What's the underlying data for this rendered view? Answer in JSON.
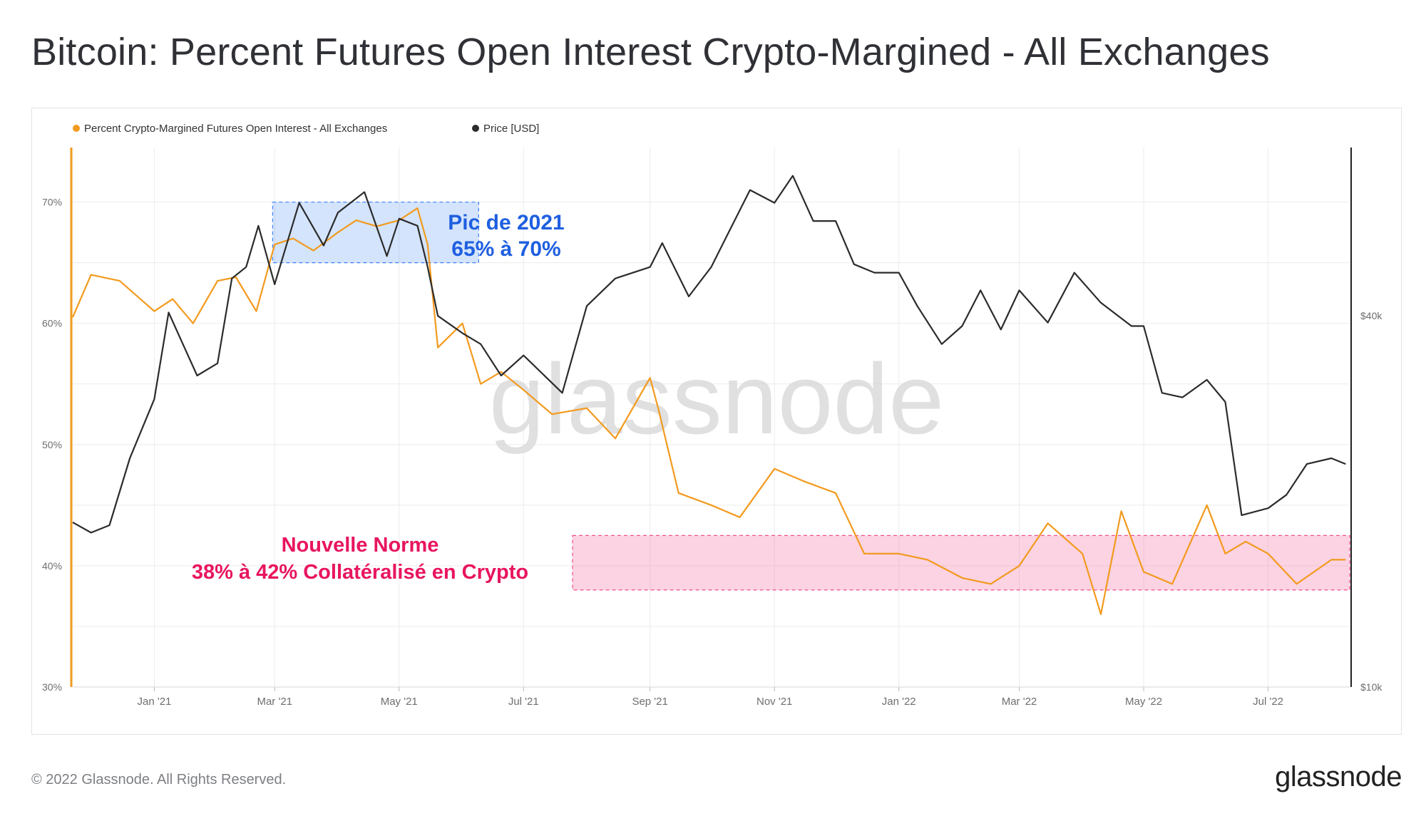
{
  "title": "Bitcoin: Percent Futures Open Interest Crypto-Margined - All Exchanges",
  "footer": {
    "copyright": "© 2022 Glassnode. All Rights Reserved.",
    "logo": "glassnode"
  },
  "watermark": "glassnode",
  "annotations": {
    "peak_label_line1": "Pic de 2021",
    "peak_label_line2": "65% à 70%",
    "norm_label_line1": "Nouvelle Norme",
    "norm_label_line2": "38% à 42% Collatéralisé en Crypto"
  },
  "colors": {
    "oi_line": "#f39a1e",
    "price_line": "#2b2b2b",
    "peak_box": "#3b82f6",
    "norm_box": "#f0508c",
    "peak_text": "#1f5fe0",
    "norm_text": "#e8155f",
    "grid": "#ececec",
    "axis_text": "#6e6e6e"
  },
  "chart_data": {
    "type": "line",
    "legend": [
      "Percent Crypto-Margined Futures Open Interest - All Exchanges",
      "Price [USD]"
    ],
    "legend_position": "top-left",
    "x_ticks": [
      "Jan '21",
      "Mar '21",
      "May '21",
      "Jul '21",
      "Sep '21",
      "Nov '21",
      "Jan '22",
      "Mar '22",
      "May '22",
      "Jul '22"
    ],
    "x_tick_dates": [
      "2021-01-01",
      "2021-03-01",
      "2021-05-01",
      "2021-07-01",
      "2021-09-01",
      "2021-11-01",
      "2022-01-01",
      "2022-03-01",
      "2022-05-01",
      "2022-07-01"
    ],
    "x_range": [
      "2020-11-22",
      "2022-08-10"
    ],
    "y_left": {
      "ticks": [
        "30%",
        "40%",
        "50%",
        "60%",
        "70%"
      ],
      "range": [
        30,
        74.5
      ]
    },
    "y_right": {
      "ticks": [
        "$10k",
        "$40k"
      ],
      "scale": "log",
      "range": [
        10000,
        75000
      ]
    },
    "grid": true,
    "series": [
      {
        "name": "Percent Crypto-Margined Futures Open Interest - All Exchanges",
        "axis": "left",
        "unit": "%",
        "x": [
          "2020-11-22",
          "2020-12-01",
          "2020-12-15",
          "2021-01-01",
          "2021-01-10",
          "2021-01-20",
          "2021-02-01",
          "2021-02-10",
          "2021-02-20",
          "2021-03-01",
          "2021-03-10",
          "2021-03-20",
          "2021-04-01",
          "2021-04-10",
          "2021-04-20",
          "2021-05-01",
          "2021-05-10",
          "2021-05-15",
          "2021-05-20",
          "2021-06-01",
          "2021-06-10",
          "2021-06-20",
          "2021-07-01",
          "2021-07-15",
          "2021-08-01",
          "2021-08-15",
          "2021-09-01",
          "2021-09-05",
          "2021-09-15",
          "2021-10-01",
          "2021-10-15",
          "2021-11-01",
          "2021-11-15",
          "2021-12-01",
          "2021-12-15",
          "2022-01-01",
          "2022-01-15",
          "2022-02-01",
          "2022-02-15",
          "2022-03-01",
          "2022-03-15",
          "2022-04-01",
          "2022-04-10",
          "2022-04-20",
          "2022-05-01",
          "2022-05-15",
          "2022-06-01",
          "2022-06-10",
          "2022-06-20",
          "2022-07-01",
          "2022-07-15",
          "2022-08-01",
          "2022-08-08"
        ],
        "y": [
          60.5,
          64,
          63.5,
          61,
          62,
          60,
          63.5,
          63.8,
          61,
          66.5,
          67,
          66,
          67.5,
          68.5,
          68,
          68.5,
          69.5,
          66.5,
          58,
          60,
          55,
          56,
          54.5,
          52.5,
          53,
          50.5,
          55.5,
          53,
          46,
          45,
          44,
          48,
          47,
          46,
          41,
          41,
          40.5,
          39,
          38.5,
          40,
          43.5,
          41,
          36,
          44.5,
          39.5,
          38.5,
          45,
          41,
          42,
          41,
          38.5,
          40.5,
          40.5
        ]
      },
      {
        "name": "Price [USD]",
        "axis": "right",
        "unit": "USD",
        "x": [
          "2020-11-22",
          "2020-12-01",
          "2020-12-10",
          "2020-12-20",
          "2021-01-01",
          "2021-01-08",
          "2021-01-15",
          "2021-01-22",
          "2021-02-01",
          "2021-02-08",
          "2021-02-15",
          "2021-02-21",
          "2021-03-01",
          "2021-03-13",
          "2021-03-25",
          "2021-04-01",
          "2021-04-14",
          "2021-04-25",
          "2021-05-01",
          "2021-05-10",
          "2021-05-15",
          "2021-05-20",
          "2021-06-01",
          "2021-06-10",
          "2021-06-20",
          "2021-07-01",
          "2021-07-20",
          "2021-08-01",
          "2021-08-15",
          "2021-09-01",
          "2021-09-07",
          "2021-09-20",
          "2021-10-01",
          "2021-10-10",
          "2021-10-20",
          "2021-11-01",
          "2021-11-10",
          "2021-11-20",
          "2021-12-01",
          "2021-12-10",
          "2021-12-20",
          "2022-01-01",
          "2022-01-10",
          "2022-01-22",
          "2022-02-01",
          "2022-02-10",
          "2022-02-20",
          "2022-03-01",
          "2022-03-15",
          "2022-03-28",
          "2022-04-10",
          "2022-04-25",
          "2022-05-01",
          "2022-05-10",
          "2022-05-20",
          "2022-06-01",
          "2022-06-10",
          "2022-06-18",
          "2022-07-01",
          "2022-07-10",
          "2022-07-20",
          "2022-08-01",
          "2022-08-08"
        ],
        "y": [
          18500,
          17800,
          18300,
          23500,
          29300,
          40500,
          36000,
          32000,
          33500,
          46000,
          48000,
          56000,
          45000,
          61000,
          52000,
          58800,
          63500,
          50000,
          57500,
          56000,
          48000,
          40000,
          37500,
          36000,
          32000,
          34500,
          30000,
          41500,
          46000,
          48000,
          52500,
          43000,
          48000,
          55000,
          64000,
          61000,
          67500,
          57000,
          57000,
          48500,
          47000,
          47000,
          41500,
          36000,
          38500,
          44000,
          38000,
          44000,
          39000,
          47000,
          42000,
          38500,
          38500,
          30000,
          29500,
          31500,
          29000,
          19000,
          19500,
          20500,
          23000,
          23500,
          23000
        ]
      }
    ],
    "highlight_regions": [
      {
        "label": "Pic de 2021",
        "x_range": [
          "2021-02-28",
          "2021-06-09"
        ],
        "y_range": [
          65,
          70
        ]
      },
      {
        "label": "Nouvelle Norme",
        "x_range": [
          "2021-07-25",
          "2022-08-10"
        ],
        "y_range": [
          38,
          42.5
        ]
      }
    ]
  }
}
